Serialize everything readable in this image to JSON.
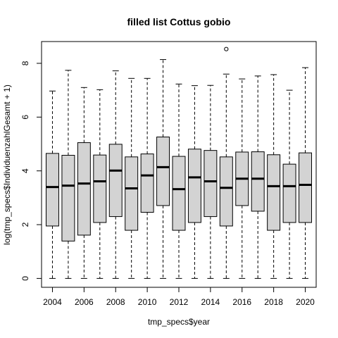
{
  "chart_data": {
    "type": "boxplot",
    "title": "filled list Cottus gobio",
    "xlabel": "tmp_specs$year",
    "ylabel": "log(tmp_specs$IndividuenzahlGesamt + 1)",
    "x_tick_labels": [
      "2004",
      "2006",
      "2008",
      "2010",
      "2012",
      "2014",
      "2016",
      "2018",
      "2020"
    ],
    "y_ticks": [
      0,
      2,
      4,
      6,
      8
    ],
    "ylim": [
      -0.33,
      8.81
    ],
    "box_fill": "#d3d3d3",
    "categories": [
      "2004",
      "2005",
      "2006",
      "2007",
      "2008",
      "2009",
      "2010",
      "2011",
      "2012",
      "2013",
      "2014",
      "2015",
      "2016",
      "2017",
      "2018",
      "2019",
      "2020"
    ],
    "boxes": [
      {
        "year": "2004",
        "min": 0,
        "q1": 1.95,
        "median": 3.4,
        "q3": 4.65,
        "max": 6.97,
        "outliers": []
      },
      {
        "year": "2005",
        "min": 0,
        "q1": 1.39,
        "median": 3.45,
        "q3": 4.58,
        "max": 7.74,
        "outliers": []
      },
      {
        "year": "2006",
        "min": 0,
        "q1": 1.61,
        "median": 3.53,
        "q3": 5.05,
        "max": 7.1,
        "outliers": []
      },
      {
        "year": "2007",
        "min": 0,
        "q1": 2.08,
        "median": 3.61,
        "q3": 4.59,
        "max": 7.02,
        "outliers": []
      },
      {
        "year": "2008",
        "min": 0,
        "q1": 2.3,
        "median": 4.01,
        "q3": 4.99,
        "max": 7.72,
        "outliers": []
      },
      {
        "year": "2009",
        "min": 0,
        "q1": 1.79,
        "median": 3.35,
        "q3": 4.52,
        "max": 7.44,
        "outliers": []
      },
      {
        "year": "2010",
        "min": 0,
        "q1": 2.46,
        "median": 3.83,
        "q3": 4.63,
        "max": 7.44,
        "outliers": []
      },
      {
        "year": "2011",
        "min": 0,
        "q1": 2.71,
        "median": 4.14,
        "q3": 5.26,
        "max": 8.14,
        "outliers": []
      },
      {
        "year": "2012",
        "min": 0,
        "q1": 1.79,
        "median": 3.32,
        "q3": 4.54,
        "max": 7.23,
        "outliers": []
      },
      {
        "year": "2013",
        "min": 0,
        "q1": 2.08,
        "median": 3.76,
        "q3": 4.81,
        "max": 7.17,
        "outliers": []
      },
      {
        "year": "2014",
        "min": 0,
        "q1": 2.3,
        "median": 3.61,
        "q3": 4.76,
        "max": 7.18,
        "outliers": []
      },
      {
        "year": "2015",
        "min": 0,
        "q1": 1.95,
        "median": 3.37,
        "q3": 4.52,
        "max": 7.6,
        "outliers": [
          8.53
        ]
      },
      {
        "year": "2016",
        "min": 0,
        "q1": 2.71,
        "median": 3.71,
        "q3": 4.7,
        "max": 7.42,
        "outliers": []
      },
      {
        "year": "2017",
        "min": 0,
        "q1": 2.5,
        "median": 3.71,
        "q3": 4.71,
        "max": 7.53,
        "outliers": []
      },
      {
        "year": "2018",
        "min": 0,
        "q1": 1.79,
        "median": 3.43,
        "q3": 4.6,
        "max": 7.58,
        "outliers": []
      },
      {
        "year": "2019",
        "min": 0,
        "q1": 2.08,
        "median": 3.43,
        "q3": 4.25,
        "max": 7.0,
        "outliers": []
      },
      {
        "year": "2020",
        "min": 0,
        "q1": 2.08,
        "median": 3.48,
        "q3": 4.67,
        "max": 7.84,
        "outliers": []
      }
    ]
  }
}
